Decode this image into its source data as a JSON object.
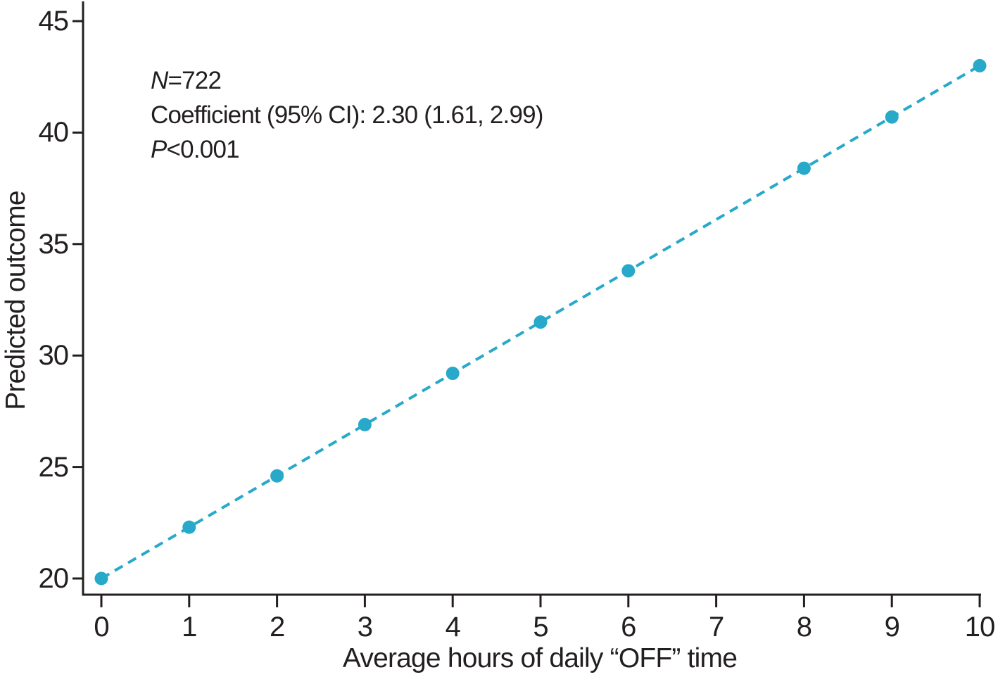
{
  "chart_data": {
    "type": "scatter",
    "xlabel": "Average hours of daily “OFF” time",
    "ylabel": "Predicted outcome",
    "x": [
      0,
      1,
      2,
      3,
      4,
      5,
      6,
      8,
      9,
      10
    ],
    "y": [
      20.0,
      22.3,
      24.6,
      26.9,
      29.2,
      31.5,
      33.8,
      38.4,
      40.7,
      43.0
    ],
    "xlim": [
      0,
      10
    ],
    "ylim": [
      20,
      45
    ],
    "xticks": [
      "0",
      "1",
      "2",
      "3",
      "4",
      "5",
      "6",
      "7",
      "8",
      "9",
      "10"
    ],
    "yticks": [
      "20",
      "25",
      "30",
      "35",
      "40",
      "45"
    ],
    "line_style": "dashed",
    "marker": "circle",
    "grid": false,
    "legend": "none",
    "colors": {
      "series": "#28a9ca",
      "axis": "#231f20",
      "text": "#231f20",
      "background": "#ffffff"
    },
    "annotation": {
      "n_italic": "N",
      "n_rest": "=722",
      "coefficient": "Coefficient (95% CI): 2.30 (1.61, 2.99)",
      "p_italic": "P",
      "p_rest": "<0.001"
    }
  }
}
